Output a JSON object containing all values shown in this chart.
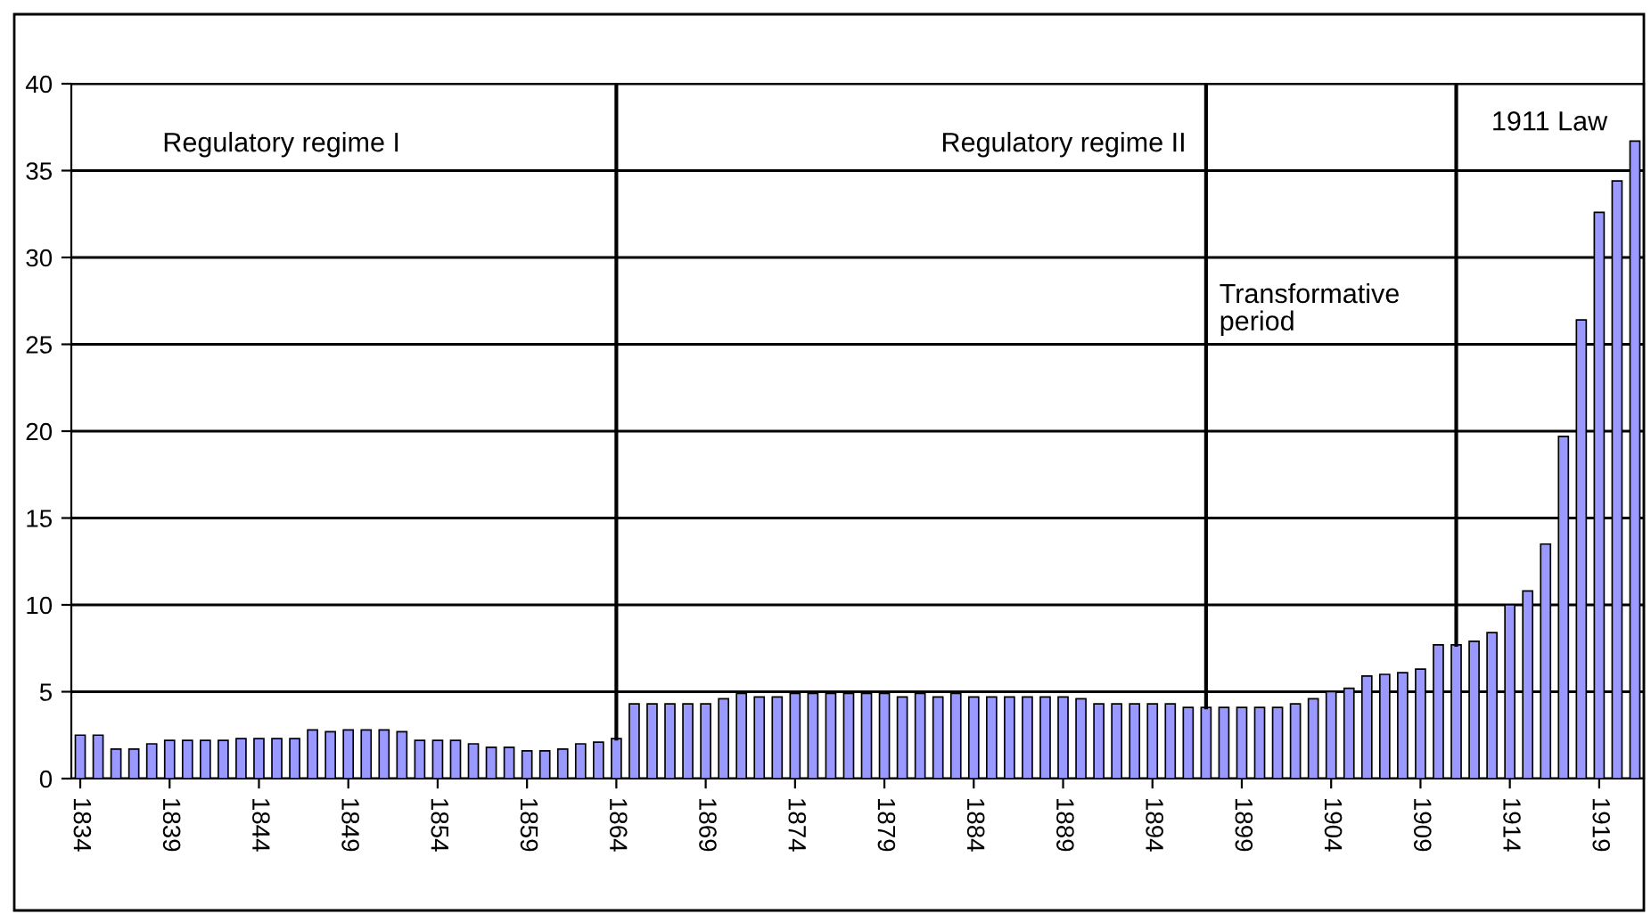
{
  "chart_data": {
    "type": "bar",
    "x": [
      1834,
      1835,
      1836,
      1837,
      1838,
      1839,
      1840,
      1841,
      1842,
      1843,
      1844,
      1845,
      1846,
      1847,
      1848,
      1849,
      1850,
      1851,
      1852,
      1853,
      1854,
      1855,
      1856,
      1857,
      1858,
      1859,
      1860,
      1861,
      1862,
      1863,
      1864,
      1865,
      1866,
      1867,
      1868,
      1869,
      1870,
      1871,
      1872,
      1873,
      1874,
      1875,
      1876,
      1877,
      1878,
      1879,
      1880,
      1881,
      1882,
      1883,
      1884,
      1885,
      1886,
      1887,
      1888,
      1889,
      1890,
      1891,
      1892,
      1893,
      1894,
      1895,
      1896,
      1897,
      1898,
      1899,
      1900,
      1901,
      1902,
      1903,
      1904,
      1905,
      1906,
      1907,
      1908,
      1909,
      1910,
      1911,
      1912,
      1913,
      1914,
      1915,
      1916,
      1917,
      1918,
      1919,
      1920,
      1921
    ],
    "values": [
      2.5,
      2.5,
      1.7,
      1.7,
      2.0,
      2.2,
      2.2,
      2.2,
      2.2,
      2.3,
      2.3,
      2.3,
      2.3,
      2.8,
      2.7,
      2.8,
      2.8,
      2.8,
      2.7,
      2.2,
      2.2,
      2.2,
      2.0,
      1.8,
      1.8,
      1.6,
      1.6,
      1.7,
      2.0,
      2.1,
      2.3,
      4.3,
      4.3,
      4.3,
      4.3,
      4.3,
      4.6,
      4.9,
      4.7,
      4.7,
      4.9,
      4.9,
      4.9,
      4.9,
      4.9,
      4.9,
      4.7,
      4.9,
      4.7,
      4.9,
      4.7,
      4.7,
      4.7,
      4.7,
      4.7,
      4.7,
      4.6,
      4.3,
      4.3,
      4.3,
      4.3,
      4.3,
      4.1,
      4.1,
      4.1,
      4.1,
      4.1,
      4.1,
      4.3,
      4.6,
      5.0,
      5.2,
      5.9,
      6.0,
      6.1,
      6.3,
      7.7,
      7.7,
      7.9,
      8.4,
      10.0,
      10.8,
      13.5,
      19.7,
      26.4,
      32.6,
      34.4,
      36.7
    ],
    "color": "#9999ff",
    "xlim": [
      1833.5,
      1921.5
    ],
    "xticks": [
      1834,
      1839,
      1844,
      1849,
      1854,
      1859,
      1864,
      1869,
      1874,
      1879,
      1884,
      1889,
      1894,
      1899,
      1904,
      1909,
      1914,
      1919
    ],
    "ylim": [
      0,
      40
    ],
    "yticks": [
      0,
      5,
      10,
      15,
      20,
      25,
      30,
      35,
      40
    ],
    "grid": "y",
    "legend": false,
    "ref_lines": [
      {
        "axis": "x",
        "value": 1864,
        "color": "#000000"
      },
      {
        "axis": "x",
        "value": 1897,
        "color": "#000000"
      },
      {
        "axis": "x",
        "value": 1911,
        "color": "#000000"
      }
    ],
    "annotations": [
      "Regulatory regime I",
      "Regulatory regime II",
      "Transformative\nperiod",
      "1911 Law"
    ]
  }
}
